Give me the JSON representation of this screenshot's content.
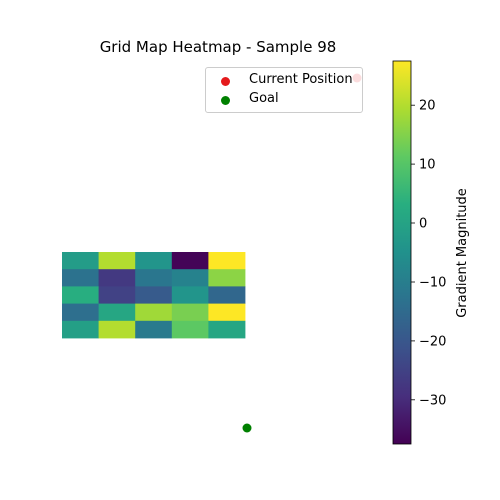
{
  "chart_data": {
    "type": "heatmap",
    "title": "Grid Map Heatmap - Sample 98",
    "grid": [
      [
        -2,
        20,
        -4,
        -37,
        28
      ],
      [
        -13,
        -27,
        -12,
        -9,
        16
      ],
      [
        3,
        -25,
        -19,
        -4,
        -16
      ],
      [
        -14,
        1,
        18,
        14,
        28
      ],
      [
        -1,
        20,
        -11,
        11,
        1
      ]
    ],
    "colorbar": {
      "label": "Gradient Magnitude",
      "range": [
        -37.5,
        27.5
      ],
      "ticks": [
        20,
        10,
        0,
        -10,
        -20,
        -30
      ],
      "tick_labels": [
        "20",
        "10",
        "0",
        "−10",
        "−20",
        "−30"
      ],
      "colormap": "viridis"
    },
    "points": [
      {
        "name": "Current Position",
        "color": "#e41a1c"
      },
      {
        "name": "Goal",
        "color": "#008000"
      }
    ],
    "legend": {
      "placement": "upper-right",
      "entries": [
        {
          "label": "Current Position",
          "color": "#e41a1c"
        },
        {
          "label": "Goal",
          "color": "#008000"
        }
      ]
    },
    "axes_visible": false,
    "grid_lines": false
  }
}
